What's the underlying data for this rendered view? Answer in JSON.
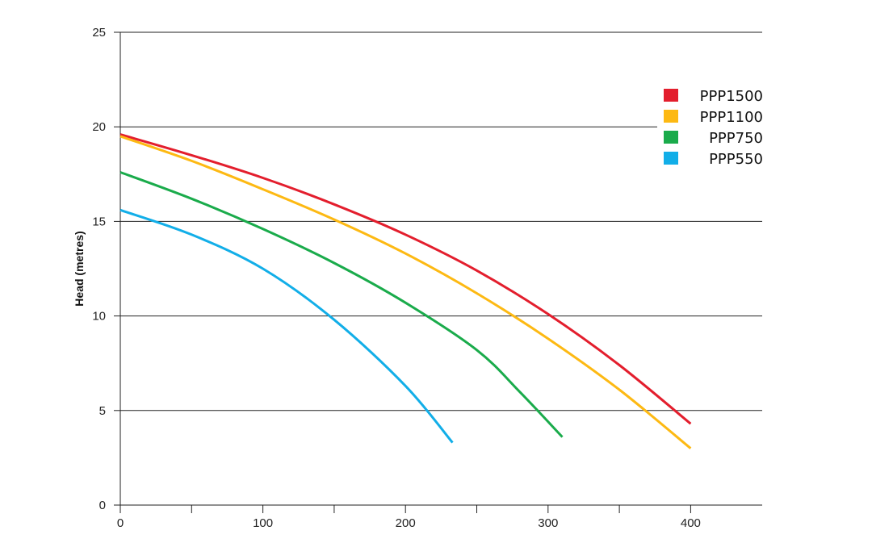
{
  "chart_data": {
    "type": "line",
    "title": "",
    "xlabel": "",
    "ylabel": "Head (metres)",
    "xlim": [
      0,
      450
    ],
    "ylim": [
      0,
      25
    ],
    "x_ticks": [
      0,
      100,
      200,
      300,
      400
    ],
    "x_minor_ticks": [
      50,
      150,
      250,
      350
    ],
    "y_ticks": [
      0,
      5,
      10,
      15,
      20,
      25
    ],
    "grid": "horizontal",
    "legend_position": "top-right",
    "series": [
      {
        "name": "PPP1500",
        "color": "#e31e2d",
        "points": [
          [
            0,
            19.6
          ],
          [
            50,
            18.5
          ],
          [
            100,
            17.3
          ],
          [
            150,
            15.9
          ],
          [
            200,
            14.3
          ],
          [
            250,
            12.4
          ],
          [
            300,
            10.1
          ],
          [
            350,
            7.4
          ],
          [
            400,
            4.3
          ]
        ]
      },
      {
        "name": "PPP1100",
        "color": "#fdb913",
        "points": [
          [
            0,
            19.5
          ],
          [
            50,
            18.2
          ],
          [
            100,
            16.7
          ],
          [
            150,
            15.1
          ],
          [
            200,
            13.3
          ],
          [
            250,
            11.2
          ],
          [
            300,
            8.8
          ],
          [
            350,
            6.1
          ],
          [
            400,
            3.0
          ]
        ]
      },
      {
        "name": "PPP750",
        "color": "#1aab4b",
        "points": [
          [
            0,
            17.6
          ],
          [
            50,
            16.2
          ],
          [
            100,
            14.6
          ],
          [
            150,
            12.8
          ],
          [
            200,
            10.7
          ],
          [
            250,
            8.2
          ],
          [
            280,
            6.0
          ],
          [
            310,
            3.6
          ]
        ]
      },
      {
        "name": "PPP550",
        "color": "#12aee8",
        "points": [
          [
            0,
            15.6
          ],
          [
            50,
            14.3
          ],
          [
            100,
            12.5
          ],
          [
            150,
            9.8
          ],
          [
            200,
            6.3
          ],
          [
            233,
            3.3
          ]
        ]
      }
    ]
  }
}
